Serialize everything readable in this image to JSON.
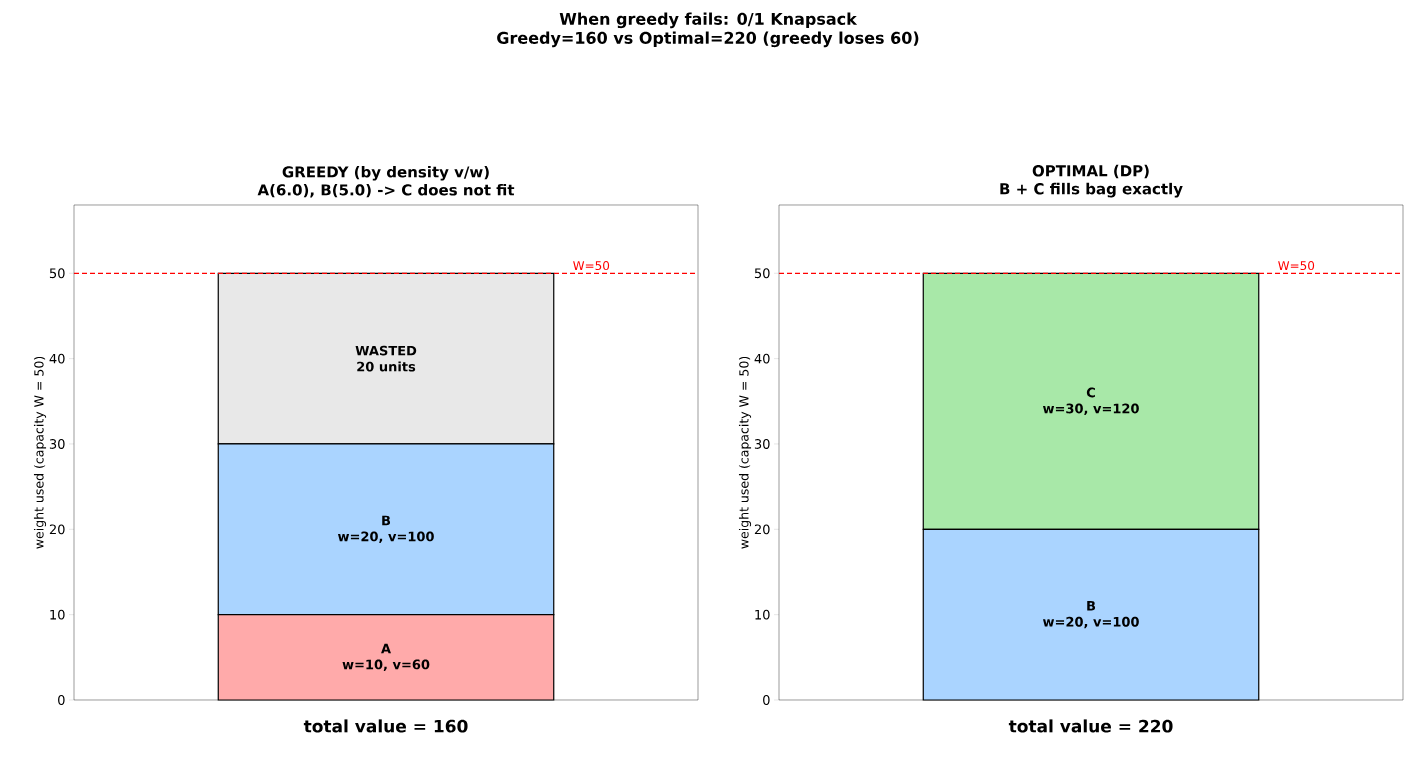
{
  "chart_data": [
    {
      "type": "other",
      "title": "When greedy fails: 0/1 Knapsack",
      "subtitle": "Greedy=160  vs  Optimal=220  (greedy loses 60)"
    },
    {
      "type": "bar",
      "stacked": true,
      "title": "GREEDY (by density v/w)",
      "subtitle": "A(6.0), B(5.0) -> C does not fit",
      "xlabel": "total value = 160",
      "ylabel": "weight used (capacity W = 50)",
      "categories": [
        null
      ],
      "ylim": [
        0,
        58
      ],
      "yticks": [
        0,
        10,
        20,
        30,
        40,
        50
      ],
      "series": [
        {
          "name": "A",
          "color": "#ffaaaa",
          "values": [
            10
          ],
          "value_labels": [
            "w=10, v=60"
          ]
        },
        {
          "name": "B",
          "color": "#aad4ff",
          "values": [
            20
          ],
          "value_labels": [
            "w=20, v=100"
          ]
        },
        {
          "name": "WASTED",
          "color": "#e8e8e8",
          "values": [
            20
          ],
          "value_labels": [
            "20 units"
          ]
        }
      ],
      "ref_lines": [
        {
          "axis": "y",
          "value": 50,
          "label": "W=50",
          "color": "#ff0000",
          "line_style": "dashed"
        }
      ]
    },
    {
      "type": "bar",
      "stacked": true,
      "title": "OPTIMAL (DP)",
      "subtitle": "B + C fills bag exactly",
      "xlabel": "total value = 220",
      "ylabel": "weight used (capacity W = 50)",
      "categories": [
        null
      ],
      "ylim": [
        0,
        58
      ],
      "yticks": [
        0,
        10,
        20,
        30,
        40,
        50
      ],
      "series": [
        {
          "name": "B",
          "color": "#aad4ff",
          "values": [
            20
          ],
          "value_labels": [
            "w=20, v=100"
          ]
        },
        {
          "name": "C",
          "color": "#a8e8a8",
          "values": [
            30
          ],
          "value_labels": [
            "w=30, v=120"
          ]
        }
      ],
      "ref_lines": [
        {
          "axis": "y",
          "value": 50,
          "label": "W=50",
          "color": "#ff0000",
          "line_style": "dashed"
        }
      ]
    }
  ]
}
